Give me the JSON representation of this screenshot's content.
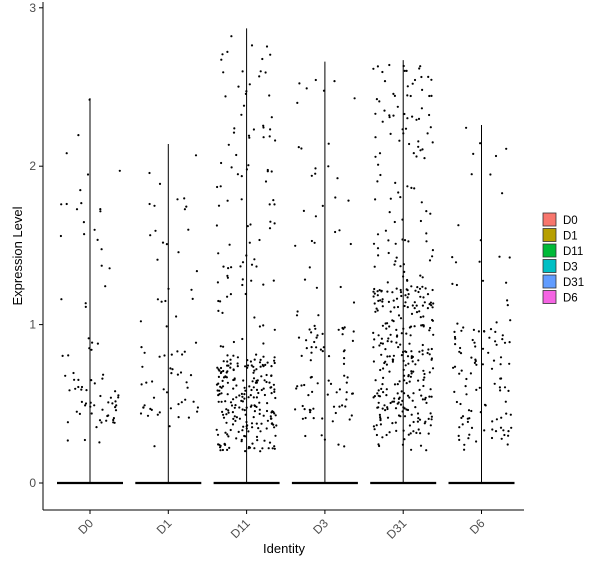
{
  "chart_data": {
    "type": "scatter",
    "subtype": "violin-with-jitter",
    "title": "",
    "xlabel": "Identity",
    "ylabel": "Expression Level",
    "ylim": [
      -0.15,
      3.0
    ],
    "y_ticks": [
      "0",
      "1",
      "2",
      "3"
    ],
    "y_tick_values": [
      0,
      1,
      2,
      3
    ],
    "categories": [
      "D0",
      "D1",
      "D11",
      "D3",
      "D31",
      "D6"
    ],
    "x_tick_rotation": "45deg",
    "legend_position": "right",
    "legend": [
      {
        "name": "D0",
        "color": "#F8766D"
      },
      {
        "name": "D1",
        "color": "#B79F00"
      },
      {
        "name": "D11",
        "color": "#00BA38"
      },
      {
        "name": "D3",
        "color": "#00BFC4"
      },
      {
        "name": "D31",
        "color": "#619CFF"
      },
      {
        "name": "D6",
        "color": "#F564E3"
      }
    ],
    "groups": [
      {
        "name": "D0",
        "max": 2.43,
        "n_nonzero": 80,
        "dense_low": 0.35,
        "dense_high": 0.7
      },
      {
        "name": "D1",
        "max": 2.14,
        "n_nonzero": 70,
        "dense_low": 0.4,
        "dense_high": 0.9
      },
      {
        "name": "D11",
        "max": 2.87,
        "n_nonzero": 320,
        "dense_low": 0.2,
        "dense_high": 0.8
      },
      {
        "name": "D3",
        "max": 2.66,
        "n_nonzero": 110,
        "dense_low": 0.4,
        "dense_high": 1.0
      },
      {
        "name": "D31",
        "max": 2.67,
        "n_nonzero": 380,
        "dense_low": 0.3,
        "dense_high": 1.25
      },
      {
        "name": "D6",
        "max": 2.26,
        "n_nonzero": 120,
        "dense_low": 0.2,
        "dense_high": 1.0
      }
    ],
    "zero_value": 0,
    "grid": false
  }
}
